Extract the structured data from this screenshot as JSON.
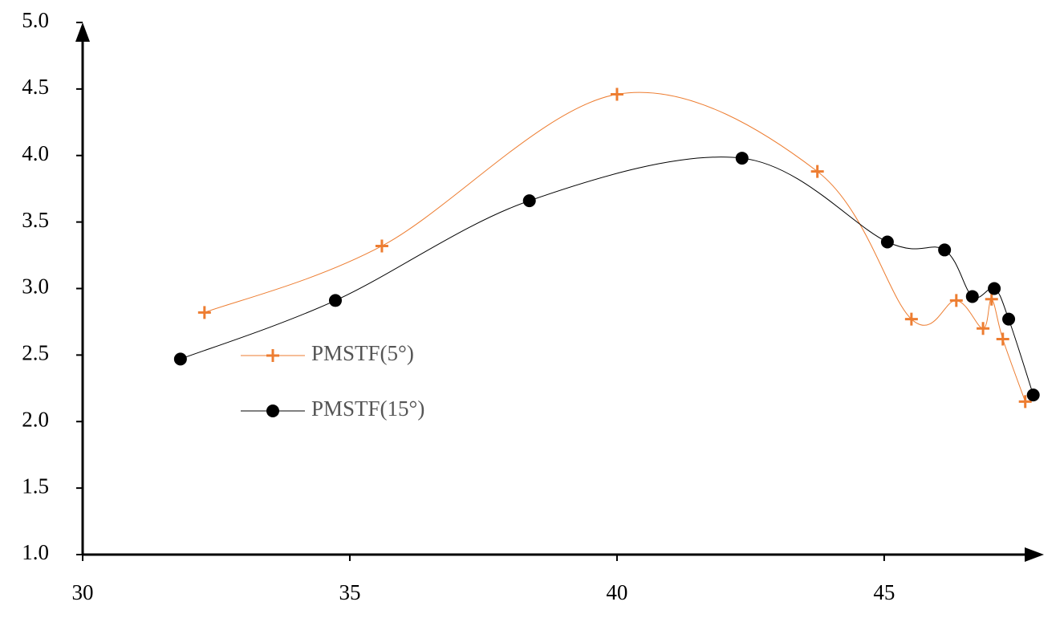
{
  "chart_data": {
    "type": "scatter",
    "xlim": [
      30,
      48.2
    ],
    "xticks": [
      30,
      35,
      40,
      45
    ],
    "ylim": [
      1,
      5
    ],
    "yticks": [
      {
        "value": 1,
        "label": "1.0"
      },
      {
        "value": 1.5,
        "label": "1.5"
      },
      {
        "value": 2,
        "label": "2.0"
      },
      {
        "value": 2.5,
        "label": "2.5"
      },
      {
        "value": 3,
        "label": "3.0"
      },
      {
        "value": 3.5,
        "label": "3.5"
      },
      {
        "value": 4,
        "label": "4.0"
      },
      {
        "value": 4.5,
        "label": "4.5"
      },
      {
        "value": 5,
        "label": "5.0"
      }
    ],
    "legend": "center-left",
    "series": [
      {
        "name": "PMSTF(5°)",
        "color": "#ed7d31",
        "marker": "plus",
        "x": [
          32.28,
          35.6,
          40.0,
          43.75,
          45.51,
          46.35,
          46.85,
          47.01,
          47.22,
          47.64
        ],
        "values": [
          2.82,
          3.32,
          4.46,
          3.88,
          2.77,
          2.91,
          2.7,
          2.92,
          2.62,
          2.15
        ]
      },
      {
        "name": "PMSTF(15°)",
        "color": "#000000",
        "marker": "circle",
        "x": [
          31.83,
          34.73,
          38.36,
          42.34,
          45.06,
          46.13,
          46.65,
          47.06,
          47.33,
          47.79
        ],
        "values": [
          2.47,
          2.91,
          3.66,
          3.98,
          3.35,
          3.29,
          2.94,
          3.0,
          2.77,
          2.2
        ]
      }
    ]
  }
}
